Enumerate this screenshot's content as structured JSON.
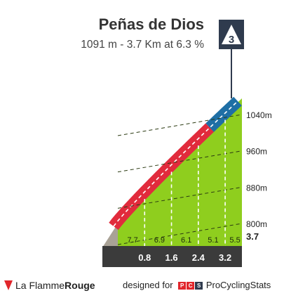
{
  "header": {
    "climb_name": "Peñas de Dios",
    "summary": "1091 m - 3.7 Km at 6.3 %",
    "category": "3"
  },
  "chart_data": {
    "type": "area",
    "title": "Peñas de Dios",
    "subtitle": "1091 m - 3.7 Km at 6.3 %",
    "x_unit": "km",
    "y_unit": "m",
    "total_distance_label": "3.7",
    "elevation_ticks": [
      {
        "value": 800,
        "label": "800m"
      },
      {
        "value": 880,
        "label": "880m"
      },
      {
        "value": 960,
        "label": "960m"
      },
      {
        "value": 1040,
        "label": "1040m"
      }
    ],
    "distance_markers": [
      {
        "value": 0.8,
        "label": "0.8"
      },
      {
        "value": 1.6,
        "label": "1.6"
      },
      {
        "value": 2.4,
        "label": "2.4"
      },
      {
        "value": 3.2,
        "label": "3.2"
      }
    ],
    "segments": [
      {
        "from_km": 0.0,
        "to_km": 0.8,
        "gradient": "7.7",
        "color": "#8fce1e"
      },
      {
        "from_km": 0.8,
        "to_km": 1.6,
        "gradient": "6.9",
        "color": "#8fce1e"
      },
      {
        "from_km": 1.6,
        "to_km": 2.4,
        "gradient": "6.1",
        "color": "#8fce1e"
      },
      {
        "from_km": 2.4,
        "to_km": 3.2,
        "gradient": "5.1",
        "color": "#8fce1e"
      },
      {
        "from_km": 3.2,
        "to_km": 3.7,
        "gradient": "5.5",
        "color": "#8fce1e"
      }
    ],
    "summit_elevation": 1091,
    "start_elevation": 858,
    "road_colors": {
      "red": "#e12b3c",
      "blue": "#1e6fa5"
    },
    "base_color": "#3b3b3b",
    "grid": true
  },
  "footer": {
    "brand_la": "La Flamme",
    "brand_rouge": "Rouge",
    "designed_for": "designed for",
    "pcs_letters": [
      "P",
      "C",
      "S"
    ],
    "pcs_name": "ProCyclingStats"
  }
}
